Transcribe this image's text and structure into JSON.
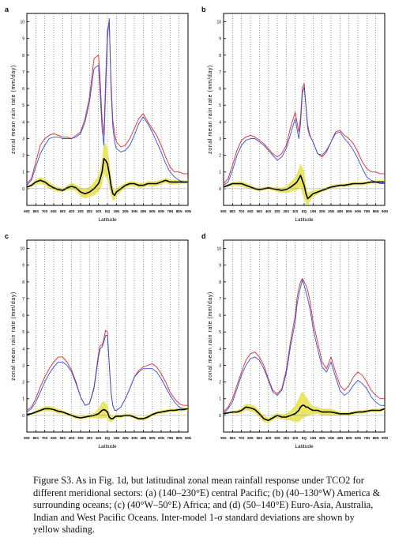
{
  "chart_data": [
    {
      "panel": "a",
      "type": "line",
      "ylabel": "zonal mean rain rate (mm/day)",
      "xlabel": "Latitude",
      "ylim": [
        -1,
        10.5
      ],
      "yticks": [
        0,
        1,
        2,
        3,
        4,
        5,
        6,
        7,
        8,
        9,
        10
      ],
      "xlim": [
        -90,
        90
      ],
      "xticks": [
        -90,
        -80,
        -70,
        -60,
        -50,
        -40,
        -30,
        -20,
        -10,
        0,
        10,
        20,
        30,
        40,
        50,
        60,
        70,
        80,
        90
      ],
      "xtick_labels": [
        "90S",
        "80S",
        "70S",
        "60S",
        "50S",
        "40S",
        "30S",
        "20S",
        "10S",
        "EQ",
        "10N",
        "20N",
        "30N",
        "40N",
        "50N",
        "60N",
        "70N",
        "80N",
        "90N"
      ],
      "grid": true,
      "x": [
        -90,
        -85,
        -80,
        -75,
        -70,
        -65,
        -60,
        -55,
        -50,
        -45,
        -40,
        -35,
        -30,
        -25,
        -20,
        -15,
        -10,
        -8,
        -6,
        -4,
        -2,
        0,
        2,
        4,
        6,
        8,
        10,
        15,
        20,
        25,
        30,
        35,
        40,
        45,
        50,
        55,
        60,
        65,
        70,
        75,
        80,
        85,
        90
      ],
      "series": [
        {
          "color": "#e8262a",
          "values": [
            0.3,
            0.6,
            1.6,
            2.6,
            3.0,
            3.2,
            3.3,
            3.2,
            3.1,
            3.1,
            3.0,
            3.2,
            3.4,
            4.2,
            5.5,
            7.8,
            8.0,
            6.4,
            4.2,
            3.2,
            6.5,
            9.5,
            10.0,
            6.5,
            4.1,
            3.3,
            2.8,
            2.5,
            2.6,
            3.0,
            3.6,
            4.2,
            4.5,
            4.0,
            3.6,
            3.2,
            2.6,
            1.9,
            1.3,
            1.0,
            1.0,
            0.9,
            0.9
          ]
        },
        {
          "color": "#2f4fe8",
          "values": [
            0.2,
            0.5,
            1.3,
            2.1,
            2.6,
            3.0,
            3.1,
            3.1,
            3.0,
            3.0,
            3.0,
            3.1,
            3.3,
            4.0,
            5.2,
            7.2,
            7.4,
            5.6,
            3.6,
            2.6,
            5.8,
            9.0,
            10.2,
            6.0,
            3.7,
            2.8,
            2.4,
            2.2,
            2.3,
            2.6,
            3.2,
            3.9,
            4.3,
            3.9,
            3.4,
            2.8,
            2.2,
            1.5,
            1.0,
            0.7,
            0.5,
            0.4,
            0.4
          ]
        },
        {
          "color": "#000000",
          "values": [
            0.1,
            0.2,
            0.4,
            0.5,
            0.4,
            0.2,
            0.05,
            -0.05,
            -0.1,
            0.05,
            0.15,
            0.05,
            -0.2,
            -0.3,
            -0.2,
            0.0,
            0.3,
            0.6,
            1.0,
            1.8,
            1.7,
            1.5,
            0.9,
            0.2,
            -0.3,
            -0.4,
            -0.2,
            0.0,
            0.2,
            0.3,
            0.3,
            0.2,
            0.2,
            0.3,
            0.3,
            0.3,
            0.4,
            0.5,
            0.4,
            0.4,
            0.4,
            0.4,
            0.4
          ]
        }
      ],
      "spread": [
        0.05,
        0.1,
        0.15,
        0.2,
        0.2,
        0.2,
        0.15,
        0.15,
        0.1,
        0.15,
        0.2,
        0.2,
        0.25,
        0.3,
        0.3,
        0.4,
        0.5,
        0.6,
        0.8,
        0.9,
        1.0,
        0.9,
        0.8,
        0.6,
        0.4,
        0.3,
        0.25,
        0.2,
        0.15,
        0.15,
        0.15,
        0.15,
        0.15,
        0.15,
        0.15,
        0.15,
        0.15,
        0.15,
        0.15,
        0.15,
        0.1,
        0.1,
        0.1
      ]
    },
    {
      "panel": "b",
      "type": "line",
      "ylabel": "zonal mean rain rate (mm/day)",
      "xlabel": "Latitude",
      "ylim": [
        -1,
        10.5
      ],
      "yticks": [
        0,
        1,
        2,
        3,
        4,
        5,
        6,
        7,
        8,
        9,
        10
      ],
      "xlim": [
        -90,
        90
      ],
      "xticks": [
        -90,
        -80,
        -70,
        -60,
        -50,
        -40,
        -30,
        -20,
        -10,
        0,
        10,
        20,
        30,
        40,
        50,
        60,
        70,
        80,
        90
      ],
      "xtick_labels": [
        "90S",
        "80S",
        "70S",
        "60S",
        "50S",
        "40S",
        "30S",
        "20S",
        "10S",
        "EQ",
        "10N",
        "20N",
        "30N",
        "40N",
        "50N",
        "60N",
        "70N",
        "80N",
        "90N"
      ],
      "grid": true,
      "x": [
        -90,
        -85,
        -80,
        -75,
        -70,
        -65,
        -60,
        -55,
        -50,
        -45,
        -40,
        -35,
        -30,
        -25,
        -20,
        -15,
        -10,
        -8,
        -6,
        -4,
        -2,
        0,
        2,
        4,
        6,
        8,
        10,
        15,
        20,
        25,
        30,
        35,
        40,
        45,
        50,
        55,
        60,
        65,
        70,
        75,
        80,
        85,
        90
      ],
      "series": [
        {
          "color": "#e8262a",
          "values": [
            0.3,
            0.6,
            1.4,
            2.3,
            2.9,
            3.1,
            3.2,
            3.1,
            2.9,
            2.7,
            2.4,
            2.1,
            1.9,
            2.1,
            2.6,
            3.7,
            4.6,
            4.0,
            3.4,
            4.3,
            6.0,
            6.3,
            5.0,
            3.8,
            3.3,
            3.0,
            2.8,
            2.1,
            1.9,
            2.2,
            2.8,
            3.4,
            3.5,
            3.2,
            3.0,
            2.7,
            2.2,
            1.6,
            1.2,
            1.0,
            1.0,
            0.9,
            0.9
          ]
        },
        {
          "color": "#2f4fe8",
          "values": [
            0.2,
            0.4,
            1.1,
            2.0,
            2.6,
            2.9,
            3.0,
            3.0,
            2.8,
            2.6,
            2.3,
            2.0,
            1.7,
            1.9,
            2.4,
            3.3,
            4.2,
            3.6,
            3.0,
            3.9,
            5.7,
            6.1,
            4.9,
            3.6,
            3.2,
            3.0,
            2.8,
            2.1,
            2.0,
            2.3,
            2.8,
            3.3,
            3.4,
            3.0,
            2.7,
            2.3,
            1.8,
            1.2,
            0.7,
            0.5,
            0.4,
            0.3,
            0.3
          ]
        },
        {
          "color": "#000000",
          "values": [
            0.1,
            0.2,
            0.3,
            0.3,
            0.3,
            0.2,
            0.1,
            0.0,
            -0.05,
            0.0,
            0.05,
            0.0,
            -0.05,
            -0.1,
            -0.05,
            0.1,
            0.3,
            0.4,
            0.6,
            0.8,
            0.5,
            0.2,
            -0.3,
            -0.6,
            -0.5,
            -0.4,
            -0.3,
            -0.2,
            -0.1,
            0.0,
            0.1,
            0.15,
            0.2,
            0.2,
            0.25,
            0.3,
            0.3,
            0.3,
            0.35,
            0.4,
            0.4,
            0.4,
            0.4
          ]
        }
      ],
      "spread": [
        0.05,
        0.1,
        0.1,
        0.15,
        0.15,
        0.15,
        0.1,
        0.1,
        0.1,
        0.1,
        0.1,
        0.1,
        0.15,
        0.15,
        0.2,
        0.3,
        0.4,
        0.5,
        0.6,
        0.7,
        0.8,
        0.8,
        0.6,
        0.4,
        0.3,
        0.25,
        0.2,
        0.15,
        0.1,
        0.1,
        0.1,
        0.1,
        0.1,
        0.1,
        0.1,
        0.1,
        0.1,
        0.1,
        0.1,
        0.1,
        0.1,
        0.1,
        0.1
      ]
    },
    {
      "panel": "c",
      "type": "line",
      "ylabel": "zonal mean rain rate (mm/day)",
      "xlabel": "Latitude",
      "ylim": [
        -1,
        10.5
      ],
      "yticks": [
        0,
        1,
        2,
        3,
        4,
        5,
        6,
        7,
        8,
        9,
        10
      ],
      "xlim": [
        -90,
        90
      ],
      "xticks": [
        -90,
        -80,
        -70,
        -60,
        -50,
        -40,
        -30,
        -20,
        -10,
        0,
        10,
        20,
        30,
        40,
        50,
        60,
        70,
        80,
        90
      ],
      "xtick_labels": [
        "90S",
        "80S",
        "70S",
        "60S",
        "50S",
        "40S",
        "30S",
        "20S",
        "10S",
        "EQ",
        "10N",
        "20N",
        "30N",
        "40N",
        "50N",
        "60N",
        "70N",
        "80N",
        "90N"
      ],
      "grid": true,
      "x": [
        -90,
        -85,
        -80,
        -75,
        -70,
        -65,
        -60,
        -55,
        -50,
        -45,
        -40,
        -35,
        -30,
        -25,
        -20,
        -15,
        -10,
        -8,
        -6,
        -4,
        -2,
        0,
        2,
        4,
        6,
        8,
        10,
        15,
        20,
        25,
        30,
        35,
        40,
        45,
        50,
        55,
        60,
        65,
        70,
        75,
        80,
        85,
        90
      ],
      "series": [
        {
          "color": "#e8262a",
          "values": [
            0.3,
            0.5,
            1.0,
            1.7,
            2.3,
            2.8,
            3.2,
            3.5,
            3.5,
            3.2,
            2.7,
            2.0,
            1.1,
            0.6,
            0.7,
            1.7,
            3.7,
            4.2,
            4.2,
            4.6,
            5.1,
            5.0,
            3.0,
            1.4,
            0.6,
            0.3,
            0.3,
            0.5,
            1.0,
            1.6,
            2.3,
            2.7,
            2.9,
            3.0,
            3.1,
            2.9,
            2.5,
            2.0,
            1.4,
            1.0,
            0.7,
            0.6,
            0.6
          ]
        },
        {
          "color": "#2f4fe8",
          "values": [
            0.2,
            0.4,
            0.8,
            1.4,
            2.0,
            2.5,
            2.9,
            3.2,
            3.2,
            3.0,
            2.6,
            1.9,
            1.1,
            0.6,
            0.7,
            1.6,
            3.5,
            4.0,
            4.1,
            4.4,
            4.8,
            4.8,
            3.1,
            1.4,
            0.6,
            0.3,
            0.3,
            0.5,
            1.0,
            1.6,
            2.3,
            2.6,
            2.8,
            2.8,
            2.8,
            2.6,
            2.2,
            1.7,
            1.2,
            0.8,
            0.5,
            0.4,
            0.4
          ]
        },
        {
          "color": "#000000",
          "values": [
            0.05,
            0.1,
            0.2,
            0.3,
            0.4,
            0.4,
            0.35,
            0.25,
            0.2,
            0.1,
            0.0,
            -0.1,
            -0.15,
            -0.1,
            -0.05,
            0.0,
            0.1,
            0.2,
            0.3,
            0.35,
            0.3,
            0.2,
            -0.1,
            -0.2,
            -0.2,
            -0.1,
            -0.05,
            -0.05,
            0.0,
            0.0,
            -0.1,
            -0.2,
            -0.2,
            -0.1,
            0.05,
            0.15,
            0.2,
            0.25,
            0.3,
            0.3,
            0.35,
            0.35,
            0.4
          ]
        }
      ],
      "spread": [
        0.05,
        0.05,
        0.1,
        0.1,
        0.15,
        0.15,
        0.15,
        0.15,
        0.1,
        0.1,
        0.1,
        0.1,
        0.1,
        0.1,
        0.1,
        0.15,
        0.3,
        0.4,
        0.5,
        0.5,
        0.45,
        0.4,
        0.3,
        0.2,
        0.15,
        0.1,
        0.1,
        0.1,
        0.1,
        0.1,
        0.1,
        0.1,
        0.1,
        0.1,
        0.1,
        0.1,
        0.1,
        0.1,
        0.1,
        0.1,
        0.1,
        0.1,
        0.1
      ]
    },
    {
      "panel": "d",
      "type": "line",
      "ylabel": "zonal mean rain rate (mm/day)",
      "xlabel": "Latitude",
      "ylim": [
        -1,
        10.5
      ],
      "yticks": [
        0,
        1,
        2,
        3,
        4,
        5,
        6,
        7,
        8,
        9,
        10
      ],
      "xlim": [
        -90,
        90
      ],
      "xticks": [
        -90,
        -80,
        -70,
        -60,
        -50,
        -40,
        -30,
        -20,
        -10,
        0,
        10,
        20,
        30,
        40,
        50,
        60,
        70,
        80,
        90
      ],
      "xtick_labels": [
        "90S",
        "80S",
        "70S",
        "60S",
        "50S",
        "40S",
        "30S",
        "20S",
        "10S",
        "EQ",
        "10N",
        "20N",
        "30N",
        "40N",
        "50N",
        "60N",
        "70N",
        "80N",
        "90N"
      ],
      "grid": true,
      "x": [
        -90,
        -85,
        -80,
        -75,
        -70,
        -65,
        -60,
        -55,
        -50,
        -45,
        -40,
        -35,
        -30,
        -25,
        -20,
        -15,
        -10,
        -8,
        -6,
        -4,
        -2,
        0,
        2,
        4,
        6,
        8,
        10,
        15,
        20,
        25,
        30,
        35,
        40,
        45,
        50,
        55,
        60,
        65,
        70,
        75,
        80,
        85,
        90
      ],
      "series": [
        {
          "color": "#e8262a",
          "values": [
            0.2,
            0.5,
            1.0,
            1.8,
            2.6,
            3.3,
            3.7,
            3.8,
            3.5,
            3.0,
            2.2,
            1.5,
            1.3,
            1.6,
            2.7,
            4.5,
            6.0,
            7.0,
            7.6,
            8.0,
            8.2,
            8.0,
            7.8,
            7.5,
            7.0,
            6.3,
            5.6,
            4.4,
            3.2,
            2.8,
            3.5,
            2.6,
            1.8,
            1.5,
            1.8,
            2.3,
            2.6,
            2.4,
            2.0,
            1.5,
            1.2,
            1.0,
            1.0
          ]
        },
        {
          "color": "#2f4fe8",
          "values": [
            0.1,
            0.4,
            0.8,
            1.6,
            2.4,
            3.0,
            3.4,
            3.5,
            3.3,
            2.8,
            2.1,
            1.4,
            1.2,
            1.5,
            2.5,
            4.2,
            5.6,
            6.6,
            7.2,
            7.7,
            8.1,
            7.8,
            7.4,
            7.0,
            6.5,
            5.9,
            5.2,
            4.0,
            2.9,
            2.6,
            3.2,
            2.3,
            1.5,
            1.2,
            1.4,
            1.8,
            2.1,
            1.9,
            1.6,
            1.1,
            0.8,
            0.6,
            0.6
          ]
        },
        {
          "color": "#000000",
          "values": [
            0.1,
            0.15,
            0.2,
            0.2,
            0.3,
            0.5,
            0.45,
            0.35,
            0.1,
            -0.2,
            -0.3,
            -0.15,
            0.0,
            -0.1,
            -0.1,
            0.0,
            0.1,
            0.2,
            0.3,
            0.5,
            0.6,
            0.6,
            0.5,
            0.5,
            0.4,
            0.35,
            0.3,
            0.3,
            0.2,
            0.2,
            0.2,
            0.15,
            0.1,
            0.1,
            0.1,
            0.15,
            0.2,
            0.2,
            0.25,
            0.3,
            0.3,
            0.3,
            0.4
          ]
        }
      ],
      "spread": [
        0.05,
        0.05,
        0.05,
        0.1,
        0.15,
        0.2,
        0.2,
        0.2,
        0.2,
        0.2,
        0.15,
        0.15,
        0.15,
        0.15,
        0.2,
        0.3,
        0.5,
        0.6,
        0.7,
        0.8,
        0.8,
        0.7,
        0.6,
        0.5,
        0.4,
        0.3,
        0.25,
        0.2,
        0.2,
        0.2,
        0.2,
        0.15,
        0.1,
        0.1,
        0.1,
        0.1,
        0.1,
        0.1,
        0.1,
        0.1,
        0.1,
        0.1,
        0.1
      ]
    }
  ],
  "colors": {
    "shading": "#e6e04a",
    "grid": "#555555"
  },
  "caption": {
    "lines": [
      "Figure S3. As in Fig. 1d, but latitudinal zonal mean rainfall response under TCO2 for",
      "different meridional sectors: (a) (140–230°E) central Pacific; (b) (40–130°W) America &",
      "surrounding oceans; (c) (40°W–50°E) Africa; and (d) (50–140°E) Euro-Asia, Australia,",
      "Indian and West Pacific Oceans.  Inter-model 1-σ standard deviations are shown by",
      "yellow shading."
    ]
  }
}
